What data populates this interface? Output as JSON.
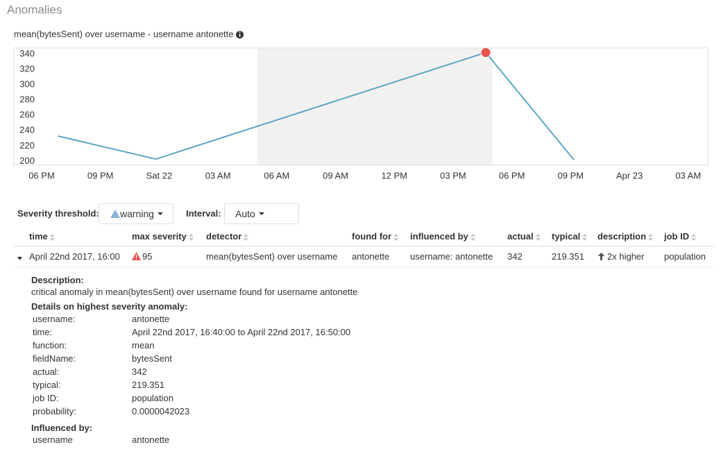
{
  "header": {
    "title": "Anomalies"
  },
  "chart_data": {
    "type": "line",
    "title": "mean(bytesSent) over username - username antonette",
    "x": [
      "2017-04-21T18:50",
      "2017-04-21T23:50",
      "2017-04-22T16:40",
      "2017-04-22T21:10"
    ],
    "values": [
      233,
      203,
      342,
      202
    ],
    "color": "#5aa6c2",
    "anomalies": [
      {
        "x": "2017-04-22T16:40",
        "value": 342,
        "color": "#e7514f"
      }
    ],
    "highlight": [
      "2017-04-22T05:00",
      "2017-04-22T17:00"
    ],
    "xlim": [
      "2017-04-21T16:35",
      "2017-04-23T04:00"
    ],
    "xticks": [
      {
        "value": "2017-04-21T18:00",
        "label": "06 PM"
      },
      {
        "value": "2017-04-21T21:00",
        "label": "09 PM"
      },
      {
        "value": "2017-04-22T00:00",
        "label": "Sat 22"
      },
      {
        "value": "2017-04-22T03:00",
        "label": "03 AM"
      },
      {
        "value": "2017-04-22T06:00",
        "label": "06 AM"
      },
      {
        "value": "2017-04-22T09:00",
        "label": "09 AM"
      },
      {
        "value": "2017-04-22T12:00",
        "label": "12 PM"
      },
      {
        "value": "2017-04-22T15:00",
        "label": "03 PM"
      },
      {
        "value": "2017-04-22T18:00",
        "label": "06 PM"
      },
      {
        "value": "2017-04-22T21:00",
        "label": "09 PM"
      },
      {
        "value": "2017-04-23T00:00",
        "label": "Apr 23"
      },
      {
        "value": "2017-04-23T03:00",
        "label": "03 AM"
      }
    ],
    "ylim": [
      195,
      348
    ],
    "yticks": [
      200,
      220,
      240,
      260,
      280,
      300,
      320,
      340
    ]
  },
  "controls": {
    "severity_label": "Severity threshold:",
    "severity_value": "warning",
    "interval_label": "Interval:",
    "interval_value": "Auto"
  },
  "table": {
    "columns": [
      "time",
      "max severity",
      "detector",
      "found for",
      "influenced by",
      "actual",
      "typical",
      "description",
      "job ID"
    ],
    "rows": [
      [
        "April 22nd 2017, 16:00",
        95,
        "mean(bytesSent) over username",
        "antonette",
        "username: antonette",
        342,
        219.351,
        "2x higher",
        "population"
      ]
    ]
  },
  "details": {
    "description_label": "Description:",
    "description": "critical anomaly in mean(bytesSent) over username found for username antonette",
    "highest_label": "Details on highest severity anomaly:",
    "highest": [
      [
        "username:",
        "antonette"
      ],
      [
        "time:",
        "April 22nd 2017, 16:40:00 to April 22nd 2017, 16:50:00"
      ],
      [
        "function:",
        "mean"
      ],
      [
        "fieldName:",
        "bytesSent"
      ],
      [
        "actual:",
        "342"
      ],
      [
        "typical:",
        "219.351"
      ],
      [
        "job ID:",
        "population"
      ],
      [
        "probability:",
        "0.0000042023"
      ]
    ],
    "influenced_label": "Influenced by:",
    "influenced": [
      [
        "username",
        "antonette"
      ]
    ]
  }
}
